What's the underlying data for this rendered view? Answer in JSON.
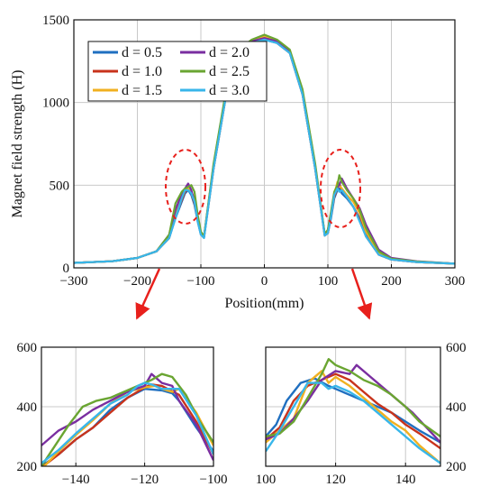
{
  "chart_data": [
    {
      "type": "line",
      "panel": "main",
      "title": "",
      "xlabel": "Position(mm)",
      "ylabel": "Magnet field strength (H)",
      "xlim": [
        -300,
        300
      ],
      "ylim": [
        0,
        1500
      ],
      "xticks": [
        -300,
        -200,
        -100,
        0,
        100,
        200,
        300
      ],
      "yticks": [
        0,
        500,
        1000,
        1500
      ],
      "xtick_labels": [
        "−300",
        "−200",
        "−100",
        "0",
        "100",
        "200",
        "300"
      ],
      "ytick_labels": [
        "0",
        "500",
        "1000",
        "1500"
      ],
      "grid": true,
      "legend_position": "top-left",
      "annotations": [
        "dashed red ellipse around left peak (~ -125)",
        "dashed red ellipse around right peak (~ 115)",
        "red arrows pointing to zoomed panels"
      ],
      "series": [
        {
          "name": "d = 0.5",
          "color": "#1f6fc0",
          "x": [
            -300,
            -240,
            -200,
            -170,
            -150,
            -140,
            -130,
            -125,
            -120,
            -115,
            -110,
            -105,
            -100,
            -95,
            -80,
            -60,
            -40,
            -20,
            0,
            20,
            40,
            60,
            80,
            95,
            100,
            105,
            110,
            115,
            118,
            122,
            130,
            140,
            150,
            160,
            180,
            200,
            240,
            300
          ],
          "y": [
            30,
            40,
            60,
            100,
            180,
            300,
            400,
            450,
            470,
            440,
            380,
            280,
            200,
            190,
            600,
            1050,
            1300,
            1360,
            1380,
            1360,
            1300,
            1050,
            600,
            200,
            210,
            300,
            420,
            470,
            480,
            450,
            420,
            370,
            300,
            200,
            80,
            50,
            35,
            25
          ]
        },
        {
          "name": "d = 1.0",
          "color": "#c8331c",
          "x": [
            -300,
            -240,
            -200,
            -170,
            -150,
            -140,
            -130,
            -125,
            -120,
            -115,
            -110,
            -105,
            -100,
            -95,
            -80,
            -60,
            -40,
            -20,
            0,
            20,
            40,
            60,
            80,
            95,
            100,
            105,
            110,
            115,
            118,
            122,
            130,
            140,
            150,
            160,
            180,
            200,
            240,
            300
          ],
          "y": [
            30,
            40,
            60,
            100,
            180,
            310,
            410,
            460,
            480,
            450,
            390,
            290,
            210,
            185,
            600,
            1050,
            1300,
            1360,
            1390,
            1360,
            1300,
            1050,
            600,
            195,
            210,
            310,
            430,
            480,
            510,
            470,
            430,
            370,
            290,
            190,
            80,
            50,
            35,
            25
          ]
        },
        {
          "name": "d = 1.5",
          "color": "#f0b020",
          "x": [
            -300,
            -240,
            -200,
            -170,
            -150,
            -140,
            -130,
            -125,
            -120,
            -115,
            -110,
            -105,
            -100,
            -95,
            -80,
            -60,
            -40,
            -20,
            0,
            20,
            40,
            60,
            80,
            95,
            100,
            105,
            110,
            115,
            118,
            122,
            130,
            140,
            150,
            160,
            180,
            200,
            240,
            300
          ],
          "y": [
            30,
            40,
            60,
            100,
            190,
            320,
            420,
            470,
            480,
            460,
            420,
            300,
            210,
            190,
            610,
            1060,
            1310,
            1370,
            1400,
            1370,
            1310,
            1060,
            610,
            200,
            220,
            320,
            440,
            520,
            500,
            480,
            440,
            400,
            330,
            220,
            90,
            55,
            35,
            25
          ]
        },
        {
          "name": "d = 2.0",
          "color": "#7a2ea0",
          "x": [
            -300,
            -240,
            -200,
            -170,
            -150,
            -140,
            -130,
            -125,
            -120,
            -115,
            -110,
            -105,
            -100,
            -95,
            -80,
            -60,
            -40,
            -20,
            0,
            20,
            40,
            60,
            80,
            95,
            100,
            105,
            110,
            115,
            118,
            122,
            130,
            140,
            150,
            160,
            180,
            200,
            240,
            300
          ],
          "y": [
            30,
            40,
            60,
            100,
            200,
            350,
            450,
            480,
            510,
            470,
            400,
            300,
            210,
            185,
            620,
            1070,
            1310,
            1370,
            1390,
            1370,
            1310,
            1070,
            620,
            200,
            230,
            330,
            450,
            490,
            500,
            540,
            480,
            420,
            360,
            260,
            110,
            60,
            40,
            25
          ]
        },
        {
          "name": "d = 2.5",
          "color": "#6aa532",
          "x": [
            -300,
            -240,
            -200,
            -170,
            -150,
            -140,
            -130,
            -125,
            -120,
            -115,
            -110,
            -105,
            -100,
            -95,
            -80,
            -60,
            -40,
            -20,
            0,
            20,
            40,
            60,
            80,
            95,
            100,
            105,
            110,
            115,
            118,
            122,
            130,
            140,
            150,
            160,
            180,
            200,
            240,
            300
          ],
          "y": [
            30,
            40,
            60,
            100,
            200,
            390,
            460,
            480,
            490,
            500,
            460,
            320,
            220,
            190,
            630,
            1080,
            1320,
            1380,
            1410,
            1380,
            1320,
            1080,
            630,
            205,
            230,
            340,
            460,
            500,
            560,
            520,
            470,
            420,
            350,
            240,
            100,
            55,
            38,
            25
          ]
        },
        {
          "name": "d = 3.0",
          "color": "#38b6ea",
          "x": [
            -300,
            -240,
            -200,
            -170,
            -150,
            -140,
            -130,
            -125,
            -120,
            -115,
            -110,
            -105,
            -100,
            -95,
            -80,
            -60,
            -40,
            -20,
            0,
            20,
            40,
            60,
            80,
            95,
            100,
            105,
            110,
            115,
            118,
            122,
            130,
            140,
            150,
            160,
            180,
            200,
            240,
            300
          ],
          "y": [
            30,
            40,
            60,
            100,
            180,
            300,
            420,
            470,
            470,
            450,
            400,
            280,
            200,
            180,
            600,
            1050,
            1300,
            1360,
            1380,
            1360,
            1300,
            1050,
            600,
            195,
            210,
            310,
            440,
            480,
            460,
            470,
            430,
            370,
            280,
            190,
            80,
            50,
            35,
            25
          ]
        }
      ]
    },
    {
      "type": "line",
      "panel": "zoom-left",
      "xlim": [
        -150,
        -100
      ],
      "ylim": [
        200,
        600
      ],
      "xticks": [
        -140,
        -120,
        -100
      ],
      "yticks": [
        200,
        400,
        600
      ],
      "xtick_labels": [
        "−140",
        "−120",
        "−100"
      ],
      "ytick_labels": [
        "200",
        "400",
        "600"
      ],
      "grid": true,
      "series": [
        {
          "name": "d = 0.5",
          "color": "#1f6fc0",
          "x": [
            -150,
            -145,
            -140,
            -135,
            -130,
            -125,
            -120,
            -115,
            -112,
            -110,
            -105,
            -100
          ],
          "y": [
            200,
            240,
            290,
            330,
            390,
            430,
            460,
            455,
            445,
            420,
            330,
            250
          ]
        },
        {
          "name": "d = 1.0",
          "color": "#c8331c",
          "x": [
            -150,
            -145,
            -140,
            -135,
            -130,
            -125,
            -120,
            -118,
            -115,
            -110,
            -105,
            -100
          ],
          "y": [
            195,
            240,
            290,
            330,
            380,
            430,
            465,
            475,
            470,
            440,
            350,
            240
          ]
        },
        {
          "name": "d = 1.5",
          "color": "#f0b020",
          "x": [
            -150,
            -145,
            -140,
            -135,
            -130,
            -125,
            -120,
            -117,
            -115,
            -112,
            -110,
            -105,
            -100
          ],
          "y": [
            190,
            250,
            305,
            355,
            410,
            450,
            465,
            470,
            460,
            450,
            460,
            380,
            270
          ]
        },
        {
          "name": "d = 2.0",
          "color": "#7a2ea0",
          "x": [
            -150,
            -145,
            -140,
            -135,
            -130,
            -125,
            -120,
            -118,
            -115,
            -112,
            -110,
            -105,
            -100
          ],
          "y": [
            270,
            320,
            350,
            390,
            420,
            450,
            470,
            510,
            480,
            470,
            420,
            340,
            220
          ]
        },
        {
          "name": "d = 2.5",
          "color": "#6aa532",
          "x": [
            -150,
            -146,
            -142,
            -138,
            -134,
            -130,
            -126,
            -122,
            -118,
            -115,
            -112,
            -108,
            -104,
            -100
          ],
          "y": [
            200,
            270,
            340,
            400,
            420,
            430,
            450,
            470,
            490,
            510,
            500,
            440,
            350,
            280
          ]
        },
        {
          "name": "d = 3.0",
          "color": "#38b6ea",
          "x": [
            -150,
            -145,
            -140,
            -135,
            -130,
            -125,
            -122,
            -120,
            -118,
            -115,
            -112,
            -110,
            -105,
            -100
          ],
          "y": [
            210,
            255,
            310,
            360,
            410,
            440,
            470,
            480,
            475,
            460,
            460,
            460,
            370,
            240
          ]
        }
      ]
    },
    {
      "type": "line",
      "panel": "zoom-right",
      "xlim": [
        100,
        150
      ],
      "ylim": [
        200,
        600
      ],
      "xticks": [
        100,
        120,
        140
      ],
      "yticks": [
        200,
        400,
        600
      ],
      "xtick_labels": [
        "100",
        "120",
        "140"
      ],
      "ytick_labels": [
        "200",
        "400",
        "600"
      ],
      "grid": true,
      "series": [
        {
          "name": "d = 0.5",
          "color": "#1f6fc0",
          "x": [
            100,
            103,
            106,
            110,
            114,
            118,
            120,
            124,
            128,
            132,
            136,
            140,
            144,
            150
          ],
          "y": [
            300,
            340,
            420,
            480,
            495,
            470,
            460,
            440,
            420,
            400,
            380,
            350,
            320,
            280
          ]
        },
        {
          "name": "d = 1.0",
          "color": "#c8331c",
          "x": [
            100,
            104,
            108,
            112,
            116,
            120,
            124,
            128,
            132,
            136,
            140,
            144,
            150
          ],
          "y": [
            290,
            330,
            420,
            470,
            490,
            510,
            490,
            450,
            410,
            380,
            340,
            310,
            260
          ]
        },
        {
          "name": "d = 1.5",
          "color": "#f0b020",
          "x": [
            100,
            104,
            108,
            112,
            116,
            118,
            120,
            124,
            128,
            132,
            136,
            140,
            144,
            150
          ],
          "y": [
            280,
            320,
            360,
            480,
            520,
            480,
            500,
            470,
            430,
            390,
            350,
            320,
            270,
            210
          ]
        },
        {
          "name": "d = 2.0",
          "color": "#7a2ea0",
          "x": [
            100,
            104,
            108,
            112,
            116,
            120,
            124,
            126,
            130,
            134,
            138,
            142,
            146,
            150
          ],
          "y": [
            290,
            310,
            360,
            420,
            490,
            520,
            510,
            540,
            500,
            460,
            420,
            380,
            330,
            280
          ]
        },
        {
          "name": "d = 2.5",
          "color": "#6aa532",
          "x": [
            100,
            104,
            108,
            112,
            116,
            118,
            120,
            124,
            128,
            132,
            136,
            140,
            144,
            150
          ],
          "y": [
            300,
            310,
            350,
            430,
            510,
            560,
            540,
            520,
            490,
            470,
            440,
            400,
            350,
            300
          ]
        },
        {
          "name": "d = 3.0",
          "color": "#38b6ea",
          "x": [
            100,
            104,
            108,
            112,
            116,
            118,
            120,
            124,
            128,
            132,
            136,
            140,
            144,
            150
          ],
          "y": [
            250,
            320,
            400,
            480,
            480,
            460,
            470,
            450,
            420,
            380,
            340,
            300,
            260,
            210
          ]
        }
      ]
    }
  ]
}
